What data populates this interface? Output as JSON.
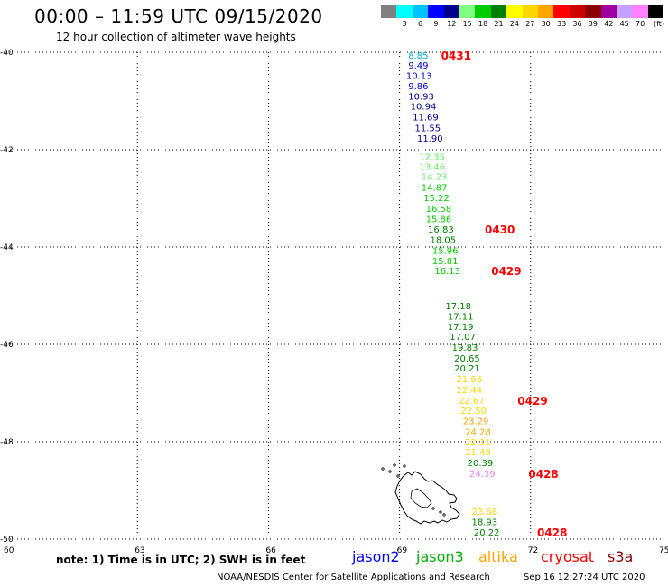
{
  "title": "00:00 – 11:59 UTC 09/15/2020",
  "subtitle": "12 hour collection of altimeter wave heights",
  "colorbar": {
    "unit": "(ft)",
    "bins": [
      {
        "label": "",
        "color": "#808080"
      },
      {
        "label": "3",
        "color": "#00ffff"
      },
      {
        "label": "6",
        "color": "#00c0ff"
      },
      {
        "label": "9",
        "color": "#0000ff"
      },
      {
        "label": "12",
        "color": "#00008b"
      },
      {
        "label": "15",
        "color": "#80ff80"
      },
      {
        "label": "18",
        "color": "#00cc00"
      },
      {
        "label": "21",
        "color": "#008000"
      },
      {
        "label": "24",
        "color": "#ffff00"
      },
      {
        "label": "27",
        "color": "#ffd700"
      },
      {
        "label": "30",
        "color": "#ffa500"
      },
      {
        "label": "33",
        "color": "#ff0000"
      },
      {
        "label": "36",
        "color": "#cc0000"
      },
      {
        "label": "39",
        "color": "#8b0000"
      },
      {
        "label": "42",
        "color": "#a000a0"
      },
      {
        "label": "45",
        "color": "#c8a0ff"
      },
      {
        "label": "70",
        "color": "#ff80ff"
      },
      {
        "label": "",
        "color": "#000000"
      }
    ]
  },
  "map": {
    "lon_ticks": [
      "60",
      "63",
      "66",
      "69",
      "72",
      "75"
    ],
    "lat_ticks": [
      "-40",
      "-42",
      "-44",
      "-46",
      "-48",
      "-50"
    ],
    "observations": [
      {
        "v": "8.85",
        "lat": -40.13,
        "lon": 69.2,
        "c": "#00aadd"
      },
      {
        "v": "9.49",
        "lat": -40.33,
        "lon": 69.2,
        "c": "#0000cc"
      },
      {
        "v": "10.13",
        "lat": -40.55,
        "lon": 69.15,
        "c": "#0000cc"
      },
      {
        "v": "9.86",
        "lat": -40.76,
        "lon": 69.2,
        "c": "#0000cc"
      },
      {
        "v": "10.93",
        "lat": -40.97,
        "lon": 69.2,
        "c": "#00008b"
      },
      {
        "v": "10.94",
        "lat": -41.18,
        "lon": 69.25,
        "c": "#00008b"
      },
      {
        "v": "11.69",
        "lat": -41.4,
        "lon": 69.3,
        "c": "#00008b"
      },
      {
        "v": "11.55",
        "lat": -41.62,
        "lon": 69.35,
        "c": "#00008b"
      },
      {
        "v": "11.90",
        "lat": -41.83,
        "lon": 69.4,
        "c": "#00008b"
      },
      {
        "v": "12.35",
        "lat": -42.21,
        "lon": 69.45,
        "c": "#66ee66"
      },
      {
        "v": "13.46",
        "lat": -42.42,
        "lon": 69.45,
        "c": "#66ee66"
      },
      {
        "v": "14.23",
        "lat": -42.62,
        "lon": 69.5,
        "c": "#66ee66"
      },
      {
        "v": "14.87",
        "lat": -42.84,
        "lon": 69.5,
        "c": "#00cc00"
      },
      {
        "v": "15.22",
        "lat": -43.06,
        "lon": 69.55,
        "c": "#00cc00"
      },
      {
        "v": "16.58",
        "lat": -43.28,
        "lon": 69.6,
        "c": "#00cc00"
      },
      {
        "v": "15.86",
        "lat": -43.49,
        "lon": 69.6,
        "c": "#00cc00"
      },
      {
        "v": "16.83",
        "lat": -43.7,
        "lon": 69.65,
        "c": "#008000"
      },
      {
        "v": "18.05",
        "lat": -43.92,
        "lon": 69.7,
        "c": "#008000"
      },
      {
        "v": "15.96",
        "lat": -44.14,
        "lon": 69.75,
        "c": "#00cc00"
      },
      {
        "v": "15.81",
        "lat": -44.35,
        "lon": 69.75,
        "c": "#00cc00"
      },
      {
        "v": "16.13",
        "lat": -44.56,
        "lon": 69.8,
        "c": "#00cc00"
      },
      {
        "v": "17.18",
        "lat": -45.28,
        "lon": 70.05,
        "c": "#008000"
      },
      {
        "v": "17.11",
        "lat": -45.49,
        "lon": 70.1,
        "c": "#008000"
      },
      {
        "v": "17.19",
        "lat": -45.7,
        "lon": 70.1,
        "c": "#008000"
      },
      {
        "v": "17.07",
        "lat": -45.91,
        "lon": 70.15,
        "c": "#008000"
      },
      {
        "v": "19.83",
        "lat": -46.13,
        "lon": 70.2,
        "c": "#008000"
      },
      {
        "v": "20.65",
        "lat": -46.35,
        "lon": 70.25,
        "c": "#008000"
      },
      {
        "v": "20.21",
        "lat": -46.56,
        "lon": 70.25,
        "c": "#008000"
      },
      {
        "v": "21.66",
        "lat": -46.78,
        "lon": 70.3,
        "c": "#ffd700"
      },
      {
        "v": "22.44",
        "lat": -47.0,
        "lon": 70.3,
        "c": "#ffd700"
      },
      {
        "v": "22.67",
        "lat": -47.22,
        "lon": 70.35,
        "c": "#ffd700"
      },
      {
        "v": "22.50",
        "lat": -47.43,
        "lon": 70.4,
        "c": "#ffd700"
      },
      {
        "v": "23.29",
        "lat": -47.64,
        "lon": 70.45,
        "c": "#ffa500"
      },
      {
        "v": "24.28",
        "lat": -47.86,
        "lon": 70.5,
        "c": "#ffa500"
      },
      {
        "v": "22.11",
        "lat": -48.07,
        "lon": 70.5,
        "c": "#ffd700"
      },
      {
        "v": "21.49",
        "lat": -48.28,
        "lon": 70.5,
        "c": "#ffd700"
      },
      {
        "v": "20.39",
        "lat": -48.5,
        "lon": 70.55,
        "c": "#008000"
      },
      {
        "v": "24.39",
        "lat": -48.72,
        "lon": 70.6,
        "c": "#ee88ee"
      },
      {
        "v": "23.68",
        "lat": -49.5,
        "lon": 70.65,
        "c": "#ffd700"
      },
      {
        "v": "18.93",
        "lat": -49.71,
        "lon": 70.65,
        "c": "#008000"
      },
      {
        "v": "20.22",
        "lat": -49.93,
        "lon": 70.7,
        "c": "#008000"
      }
    ],
    "pass_labels": [
      {
        "t": "0431",
        "lat": -40.13,
        "lon": 69.95
      },
      {
        "t": "0430",
        "lat": -43.7,
        "lon": 70.95
      },
      {
        "t": "0429",
        "lat": -44.56,
        "lon": 71.1
      },
      {
        "t": "0429",
        "lat": -47.22,
        "lon": 71.7
      },
      {
        "t": "0428",
        "lat": -48.72,
        "lon": 71.95
      },
      {
        "t": "0428",
        "lat": -49.93,
        "lon": 72.15
      }
    ]
  },
  "note": "note: 1) Time is in UTC; 2) SWH is in feet",
  "legend": [
    {
      "name": "jason2",
      "color": "#0000ff"
    },
    {
      "name": "jason3",
      "color": "#00b000"
    },
    {
      "name": "altika",
      "color": "#ffa500"
    },
    {
      "name": "cryosat",
      "color": "#ff0000"
    },
    {
      "name": "s3a",
      "color": "#8b0000"
    }
  ],
  "footer": "NOAA/NESDIS Center for Satellite Applications and Research",
  "timestamp": "Sep 16 12:27:24 UTC 2020"
}
